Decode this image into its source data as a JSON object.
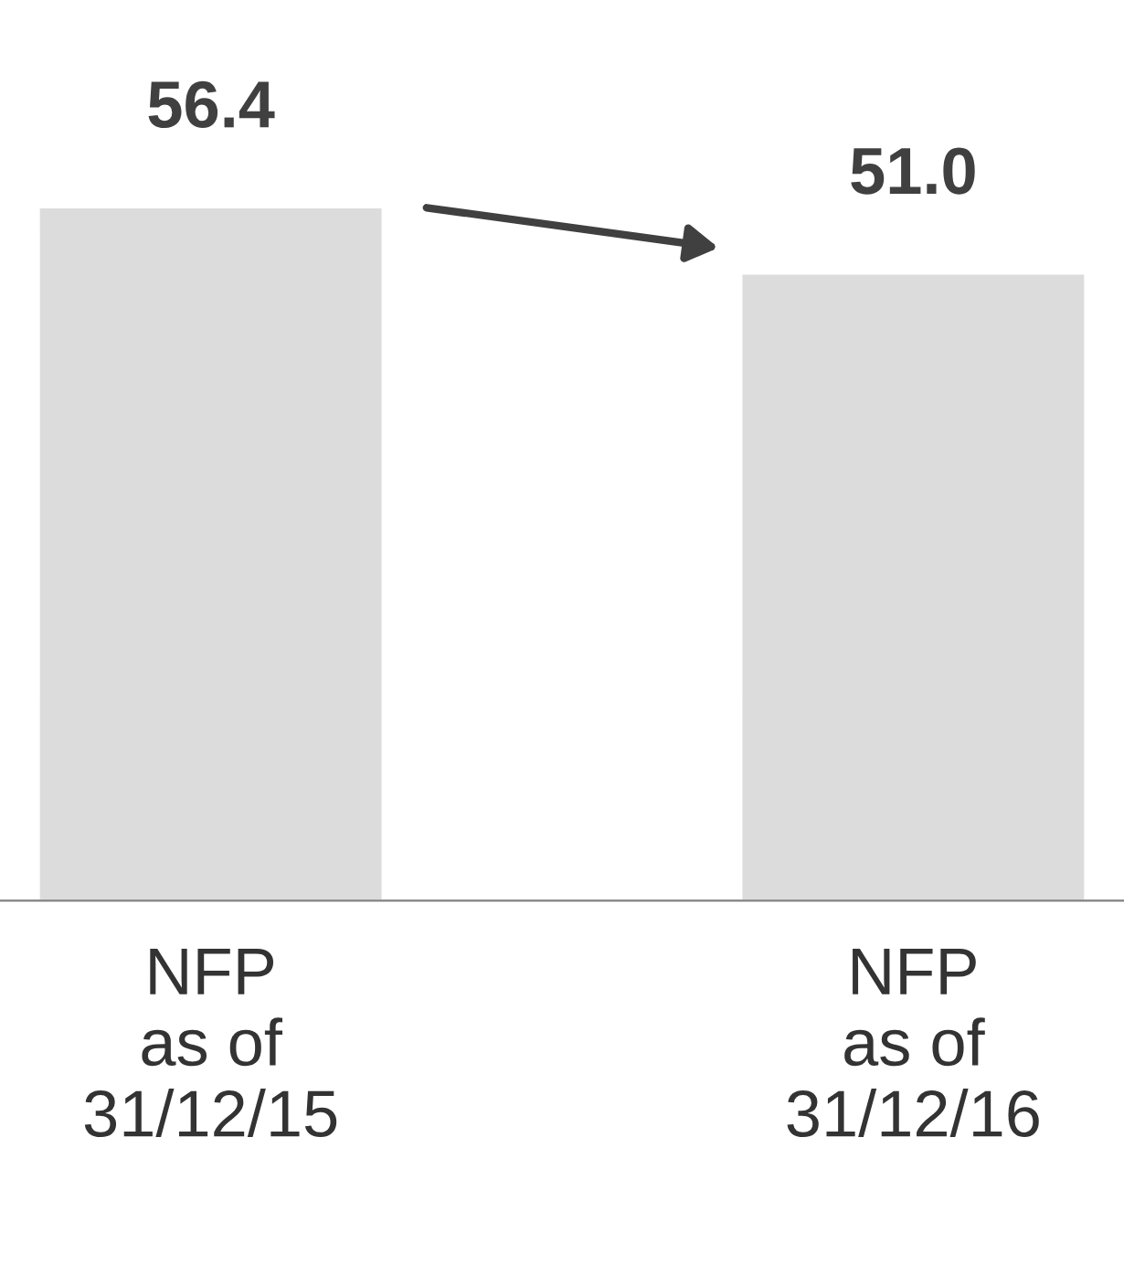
{
  "chart_data": {
    "type": "bar",
    "categories": [
      "NFP\nas of\n31/12/15",
      "NFP\nas of\n31/12/16"
    ],
    "values": [
      56.4,
      51.0
    ],
    "value_labels": [
      "56.4",
      "51.0"
    ],
    "color": "#dcdcdc",
    "grid": false,
    "legend": false
  }
}
